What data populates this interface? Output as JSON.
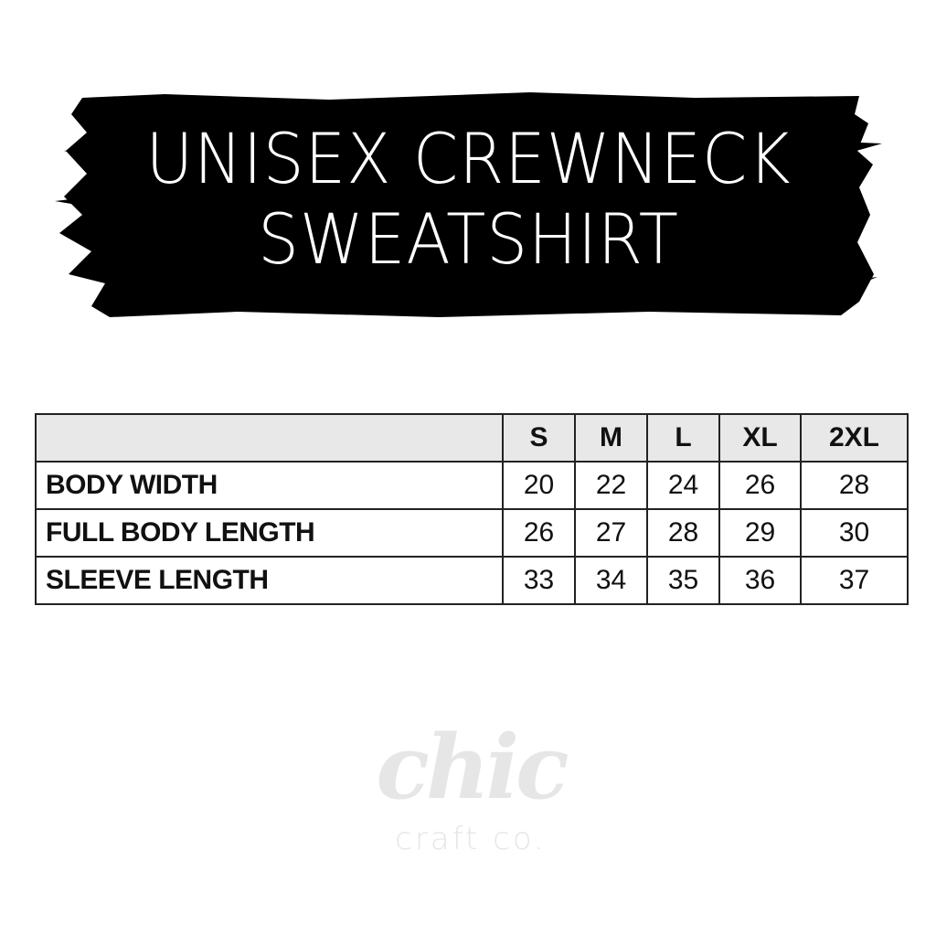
{
  "header": {
    "title_line1": "UNISEX CREWNECK",
    "title_line2": "SWEATSHIRT",
    "banner_color": "#000000"
  },
  "size_table": {
    "columns": [
      "",
      "S",
      "M",
      "L",
      "XL",
      "2XL"
    ],
    "rows": [
      {
        "label": "BODY WIDTH",
        "values": [
          "20",
          "22",
          "24",
          "26",
          "28"
        ]
      },
      {
        "label": "FULL BODY LENGTH",
        "values": [
          "26",
          "27",
          "28",
          "29",
          "30"
        ]
      },
      {
        "label": "SLEEVE LENGTH",
        "values": [
          "33",
          "34",
          "35",
          "36",
          "37"
        ]
      }
    ],
    "header_bg": "#e8e8e8"
  },
  "logo": {
    "word": "chic",
    "tagline": "craft co.",
    "color": "#e6e6e6"
  }
}
